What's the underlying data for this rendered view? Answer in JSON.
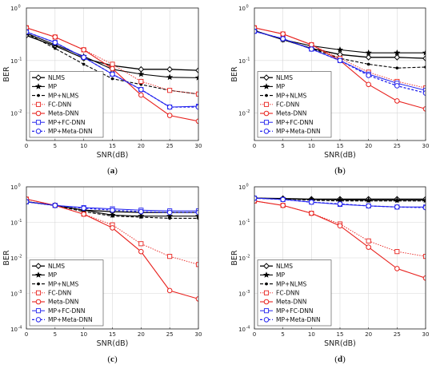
{
  "chart_data": [
    {
      "type": "line",
      "caption": "(a)",
      "xlabel": "SNR(dB)",
      "ylabel": "BER",
      "x": [
        0,
        5,
        10,
        15,
        20,
        25,
        30
      ],
      "xlim": [
        0,
        30
      ],
      "ylim": [
        0.003,
        1
      ],
      "yscale": "log",
      "yticks": [
        {
          "v": 0.01,
          "b": "10",
          "e": "-2"
        },
        {
          "v": 0.1,
          "b": "10",
          "e": "-1"
        },
        {
          "v": 1,
          "b": "10",
          "e": "0"
        }
      ],
      "xticks": [
        0,
        5,
        10,
        15,
        20,
        25,
        30
      ],
      "grid": true,
      "legend_position": "lower-left",
      "series": [
        {
          "name": "NLMS",
          "values": [
            0.3,
            0.19,
            0.11,
            0.08,
            0.068,
            0.068,
            0.065
          ]
        },
        {
          "name": "MP",
          "values": [
            0.33,
            0.2,
            0.12,
            0.068,
            0.055,
            0.048,
            0.047
          ]
        },
        {
          "name": "MP+NLMS",
          "values": [
            0.33,
            0.17,
            0.085,
            0.045,
            0.035,
            0.027,
            0.023
          ]
        },
        {
          "name": "FC-DNN",
          "values": [
            0.42,
            0.28,
            0.16,
            0.085,
            0.04,
            0.027,
            0.023
          ]
        },
        {
          "name": "Meta-DNN",
          "values": [
            0.42,
            0.28,
            0.16,
            0.07,
            0.022,
            0.009,
            0.007
          ]
        },
        {
          "name": "MP+FC-DNN",
          "values": [
            0.35,
            0.22,
            0.115,
            0.055,
            0.028,
            0.013,
            0.0135
          ]
        },
        {
          "name": "MP+Meta-DNN",
          "values": [
            0.35,
            0.22,
            0.115,
            0.055,
            0.028,
            0.013,
            0.013
          ]
        }
      ]
    },
    {
      "type": "line",
      "caption": "(b)",
      "xlabel": "SNR(dB)",
      "ylabel": "BER",
      "x": [
        0,
        5,
        10,
        15,
        20,
        25,
        30
      ],
      "xlim": [
        0,
        30
      ],
      "ylim": [
        0.003,
        1
      ],
      "yscale": "log",
      "yticks": [
        {
          "v": 0.01,
          "b": "10",
          "e": "-2"
        },
        {
          "v": 0.1,
          "b": "10",
          "e": "-1"
        },
        {
          "v": 1,
          "b": "10",
          "e": "0"
        }
      ],
      "xticks": [
        0,
        5,
        10,
        15,
        20,
        25,
        30
      ],
      "grid": true,
      "legend_position": "lower-left",
      "series": [
        {
          "name": "NLMS",
          "values": [
            0.37,
            0.25,
            0.17,
            0.13,
            0.115,
            0.115,
            0.11
          ]
        },
        {
          "name": "MP",
          "values": [
            0.37,
            0.25,
            0.19,
            0.16,
            0.14,
            0.14,
            0.14
          ]
        },
        {
          "name": "MP+NLMS",
          "values": [
            0.37,
            0.25,
            0.17,
            0.11,
            0.085,
            0.072,
            0.075
          ]
        },
        {
          "name": "FC-DNN",
          "values": [
            0.42,
            0.32,
            0.2,
            0.11,
            0.06,
            0.04,
            0.03
          ]
        },
        {
          "name": "Meta-DNN",
          "values": [
            0.42,
            0.32,
            0.2,
            0.1,
            0.035,
            0.017,
            0.012
          ]
        },
        {
          "name": "MP+FC-DNN",
          "values": [
            0.36,
            0.26,
            0.165,
            0.1,
            0.055,
            0.037,
            0.027
          ]
        },
        {
          "name": "MP+Meta-DNN",
          "values": [
            0.36,
            0.26,
            0.165,
            0.1,
            0.052,
            0.033,
            0.024
          ]
        }
      ]
    },
    {
      "type": "line",
      "caption": "(c)",
      "xlabel": "SNR(dB)",
      "ylabel": "BER",
      "x": [
        0,
        5,
        10,
        15,
        20,
        25,
        30
      ],
      "xlim": [
        0,
        30
      ],
      "ylim": [
        0.0001,
        1
      ],
      "yscale": "log",
      "yticks": [
        {
          "v": 0.0001,
          "b": "10",
          "e": "-4"
        },
        {
          "v": 0.001,
          "b": "10",
          "e": "-3"
        },
        {
          "v": 0.01,
          "b": "10",
          "e": "-2"
        },
        {
          "v": 0.1,
          "b": "10",
          "e": "-1"
        },
        {
          "v": 1,
          "b": "10",
          "e": "0"
        }
      ],
      "xticks": [
        0,
        5,
        10,
        15,
        20,
        25,
        30
      ],
      "grid": true,
      "legend_position": "lower-left",
      "series": [
        {
          "name": "NLMS",
          "values": [
            0.38,
            0.3,
            0.22,
            0.2,
            0.19,
            0.19,
            0.19
          ]
        },
        {
          "name": "MP",
          "values": [
            0.38,
            0.3,
            0.22,
            0.16,
            0.15,
            0.15,
            0.15
          ]
        },
        {
          "name": "MP+NLMS",
          "values": [
            0.38,
            0.3,
            0.2,
            0.15,
            0.14,
            0.13,
            0.13
          ]
        },
        {
          "name": "FC-DNN",
          "values": [
            0.45,
            0.3,
            0.17,
            0.085,
            0.025,
            0.011,
            0.0065
          ]
        },
        {
          "name": "Meta-DNN",
          "values": [
            0.45,
            0.3,
            0.17,
            0.07,
            0.015,
            0.0012,
            0.0007
          ]
        },
        {
          "name": "MP+FC-DNN",
          "values": [
            0.38,
            0.3,
            0.26,
            0.24,
            0.22,
            0.21,
            0.21
          ]
        },
        {
          "name": "MP+Meta-DNN",
          "values": [
            0.38,
            0.3,
            0.25,
            0.22,
            0.2,
            0.19,
            0.19
          ]
        }
      ]
    },
    {
      "type": "line",
      "caption": "(d)",
      "xlabel": "SNR(dB)",
      "ylabel": "BER",
      "x": [
        0,
        5,
        10,
        15,
        20,
        25,
        30
      ],
      "xlim": [
        0,
        30
      ],
      "ylim": [
        0.0001,
        1
      ],
      "yscale": "log",
      "yticks": [
        {
          "v": 0.0001,
          "b": "10",
          "e": "-4"
        },
        {
          "v": 0.001,
          "b": "10",
          "e": "-3"
        },
        {
          "v": 0.01,
          "b": "10",
          "e": "-2"
        },
        {
          "v": 0.1,
          "b": "10",
          "e": "-1"
        },
        {
          "v": 1,
          "b": "10",
          "e": "0"
        }
      ],
      "xticks": [
        0,
        5,
        10,
        15,
        20,
        25,
        30
      ],
      "grid": true,
      "legend_position": "lower-left",
      "series": [
        {
          "name": "NLMS",
          "values": [
            0.48,
            0.47,
            0.45,
            0.45,
            0.45,
            0.45,
            0.45
          ]
        },
        {
          "name": "MP",
          "values": [
            0.48,
            0.46,
            0.44,
            0.43,
            0.42,
            0.42,
            0.42
          ]
        },
        {
          "name": "MP+NLMS",
          "values": [
            0.48,
            0.46,
            0.42,
            0.4,
            0.4,
            0.4,
            0.4
          ]
        },
        {
          "name": "FC-DNN",
          "values": [
            0.4,
            0.3,
            0.18,
            0.09,
            0.03,
            0.015,
            0.011
          ]
        },
        {
          "name": "Meta-DNN",
          "values": [
            0.4,
            0.3,
            0.18,
            0.08,
            0.02,
            0.005,
            0.0027
          ]
        },
        {
          "name": "MP+FC-DNN",
          "values": [
            0.48,
            0.44,
            0.37,
            0.32,
            0.29,
            0.27,
            0.27
          ]
        },
        {
          "name": "MP+Meta-DNN",
          "values": [
            0.48,
            0.44,
            0.37,
            0.33,
            0.29,
            0.27,
            0.26
          ]
        }
      ]
    }
  ]
}
